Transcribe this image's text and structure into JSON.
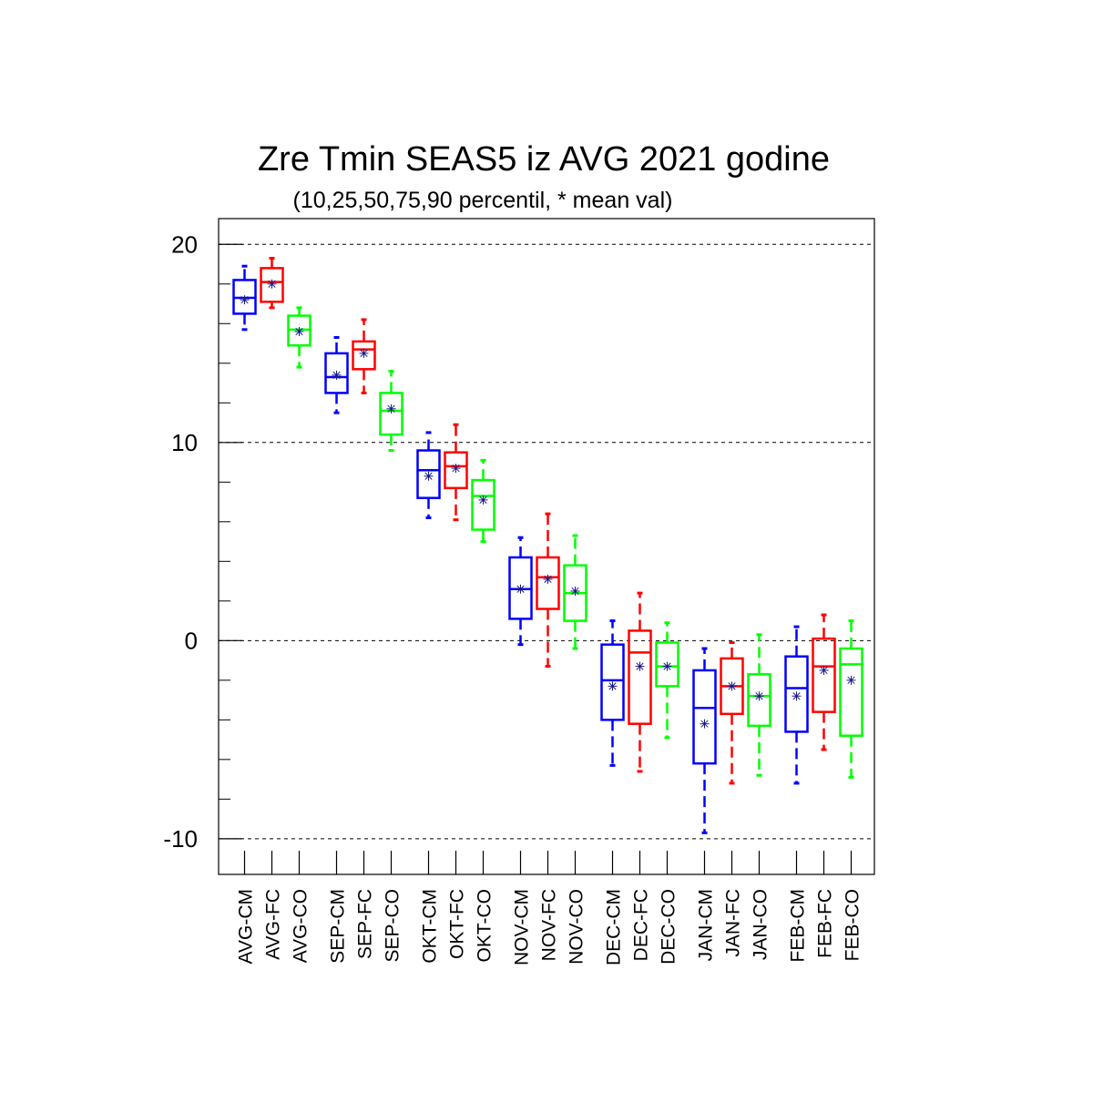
{
  "chart_data": {
    "type": "box",
    "title": "Zre Tmin SEAS5 iz AVG 2021 godine",
    "subtitle": "(10,25,50,75,90 percentil, * mean val)",
    "xlabel": "",
    "ylabel": "",
    "ylim": [
      -11.8,
      21.3
    ],
    "yticks": [
      20,
      10,
      0,
      -10
    ],
    "ytick_labels": [
      "20",
      "10",
      "0",
      "-10"
    ],
    "grid": "dashed horizontal at major ticks",
    "series_colors": {
      "CM": "#0000ff",
      "FC": "#ff0000",
      "CO": "#00ff00"
    },
    "boxes": [
      {
        "label": "AVG-CM",
        "group": 0,
        "slot": 0,
        "kind": "CM",
        "p10": 15.7,
        "p25": 16.5,
        "p50": 17.3,
        "p75": 18.2,
        "p90": 18.9,
        "mean": 17.2
      },
      {
        "label": "AVG-FC",
        "group": 0,
        "slot": 1,
        "kind": "FC",
        "p10": 16.8,
        "p25": 17.1,
        "p50": 18.1,
        "p75": 18.8,
        "p90": 19.3,
        "mean": 18.0
      },
      {
        "label": "AVG-CO",
        "group": 0,
        "slot": 2,
        "kind": "CO",
        "p10": 13.8,
        "p25": 14.9,
        "p50": 15.7,
        "p75": 16.4,
        "p90": 16.8,
        "mean": 15.6
      },
      {
        "label": "SEP-CM",
        "group": 1,
        "slot": 0,
        "kind": "CM",
        "p10": 11.5,
        "p25": 12.5,
        "p50": 13.3,
        "p75": 14.5,
        "p90": 15.3,
        "mean": 13.4
      },
      {
        "label": "SEP-FC",
        "group": 1,
        "slot": 1,
        "kind": "FC",
        "p10": 12.5,
        "p25": 13.7,
        "p50": 14.7,
        "p75": 15.1,
        "p90": 16.2,
        "mean": 14.5
      },
      {
        "label": "SEP-CO",
        "group": 1,
        "slot": 2,
        "kind": "CO",
        "p10": 9.6,
        "p25": 10.4,
        "p50": 11.6,
        "p75": 12.5,
        "p90": 13.6,
        "mean": 11.7
      },
      {
        "label": "OKT-CM",
        "group": 2,
        "slot": 0,
        "kind": "CM",
        "p10": 6.2,
        "p25": 7.2,
        "p50": 8.6,
        "p75": 9.6,
        "p90": 10.5,
        "mean": 8.3
      },
      {
        "label": "OKT-FC",
        "group": 2,
        "slot": 1,
        "kind": "FC",
        "p10": 6.1,
        "p25": 7.7,
        "p50": 8.8,
        "p75": 9.5,
        "p90": 10.9,
        "mean": 8.7
      },
      {
        "label": "OKT-CO",
        "group": 2,
        "slot": 2,
        "kind": "CO",
        "p10": 5.0,
        "p25": 5.6,
        "p50": 7.3,
        "p75": 8.1,
        "p90": 9.1,
        "mean": 7.1
      },
      {
        "label": "NOV-CM",
        "group": 3,
        "slot": 0,
        "kind": "CM",
        "p10": -0.2,
        "p25": 1.1,
        "p50": 2.6,
        "p75": 4.2,
        "p90": 5.2,
        "mean": 2.6
      },
      {
        "label": "NOV-FC",
        "group": 3,
        "slot": 1,
        "kind": "FC",
        "p10": -1.3,
        "p25": 1.6,
        "p50": 3.2,
        "p75": 4.2,
        "p90": 6.4,
        "mean": 3.1
      },
      {
        "label": "NOV-CO",
        "group": 3,
        "slot": 2,
        "kind": "CO",
        "p10": -0.4,
        "p25": 1.0,
        "p50": 2.4,
        "p75": 3.8,
        "p90": 5.3,
        "mean": 2.5
      },
      {
        "label": "DEC-CM",
        "group": 4,
        "slot": 0,
        "kind": "CM",
        "p10": -6.3,
        "p25": -4.0,
        "p50": -2.0,
        "p75": -0.2,
        "p90": 1.0,
        "mean": -2.3
      },
      {
        "label": "DEC-FC",
        "group": 4,
        "slot": 1,
        "kind": "FC",
        "p10": -6.6,
        "p25": -4.2,
        "p50": -0.6,
        "p75": 0.5,
        "p90": 2.4,
        "mean": -1.3
      },
      {
        "label": "DEC-CO",
        "group": 4,
        "slot": 2,
        "kind": "CO",
        "p10": -4.9,
        "p25": -2.3,
        "p50": -1.3,
        "p75": -0.1,
        "p90": 0.9,
        "mean": -1.3
      },
      {
        "label": "JAN-CM",
        "group": 5,
        "slot": 0,
        "kind": "CM",
        "p10": -9.7,
        "p25": -6.2,
        "p50": -3.4,
        "p75": -1.5,
        "p90": -0.4,
        "mean": -4.2
      },
      {
        "label": "JAN-FC",
        "group": 5,
        "slot": 1,
        "kind": "FC",
        "p10": -7.2,
        "p25": -3.7,
        "p50": -2.3,
        "p75": -0.9,
        "p90": -0.1,
        "mean": -2.3
      },
      {
        "label": "JAN-CO",
        "group": 5,
        "slot": 2,
        "kind": "CO",
        "p10": -6.8,
        "p25": -4.3,
        "p50": -2.8,
        "p75": -1.7,
        "p90": 0.3,
        "mean": -2.8
      },
      {
        "label": "FEB-CM",
        "group": 6,
        "slot": 0,
        "kind": "CM",
        "p10": -7.2,
        "p25": -4.6,
        "p50": -2.4,
        "p75": -0.8,
        "p90": 0.7,
        "mean": -2.8
      },
      {
        "label": "FEB-FC",
        "group": 6,
        "slot": 1,
        "kind": "FC",
        "p10": -5.5,
        "p25": -3.6,
        "p50": -1.3,
        "p75": 0.1,
        "p90": 1.3,
        "mean": -1.5
      },
      {
        "label": "FEB-CO",
        "group": 6,
        "slot": 2,
        "kind": "CO",
        "p10": -6.9,
        "p25": -4.8,
        "p50": -1.2,
        "p75": -0.4,
        "p90": 1.0,
        "mean": -2.0
      }
    ]
  }
}
